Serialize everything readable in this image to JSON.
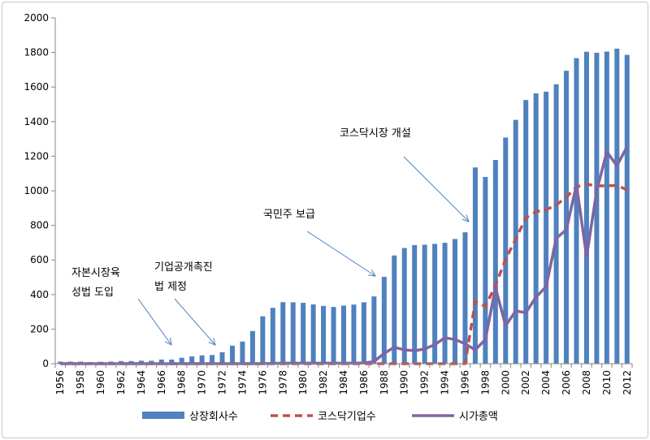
{
  "chart_data": {
    "type": "bar+line",
    "ylim": [
      0,
      2000
    ],
    "yticks": [
      0,
      200,
      400,
      600,
      800,
      1000,
      1200,
      1400,
      1600,
      1800,
      2000
    ],
    "x": [
      1956,
      1957,
      1958,
      1959,
      1960,
      1961,
      1962,
      1963,
      1964,
      1965,
      1966,
      1967,
      1968,
      1969,
      1970,
      1971,
      1972,
      1973,
      1974,
      1975,
      1976,
      1977,
      1978,
      1979,
      1980,
      1981,
      1982,
      1983,
      1984,
      1985,
      1986,
      1987,
      1988,
      1989,
      1990,
      1991,
      1992,
      1993,
      1994,
      1995,
      1996,
      1997,
      1998,
      1999,
      2000,
      2001,
      2002,
      2003,
      2004,
      2005,
      2006,
      2007,
      2008,
      2009,
      2010,
      2011,
      2012
    ],
    "xtick_labels": [
      "1956",
      "1958",
      "1960",
      "1962",
      "1964",
      "1966",
      "1968",
      "1970",
      "1972",
      "1974",
      "1976",
      "1978",
      "1980",
      "1982",
      "1984",
      "1986",
      "1988",
      "1990",
      "1992",
      "1994",
      "1996",
      "1998",
      "2000",
      "2002",
      "2004",
      "2006",
      "2008",
      "2010",
      "2012"
    ],
    "series": [
      {
        "name": "상장회사수",
        "type": "bar",
        "color": "#4f81bd",
        "values": [
          12,
          12,
          12,
          9,
          11,
          12,
          15,
          15,
          17,
          17,
          24,
          24,
          34,
          42,
          48,
          50,
          66,
          104,
          128,
          189,
          274,
          323,
          356,
          355,
          352,
          343,
          334,
          328,
          336,
          342,
          355,
          389,
          502,
          626,
          669,
          686,
          688,
          693,
          699,
          721,
          760,
          1135,
          1080,
          1178,
          1308,
          1410,
          1525,
          1563,
          1573,
          1616,
          1694,
          1767,
          1804,
          1798,
          1805,
          1822,
          1786
        ]
      },
      {
        "name": "코스닥기업수",
        "type": "line",
        "style": "dashed",
        "color": "#c0504d",
        "values": [
          0,
          0,
          0,
          0,
          0,
          0,
          0,
          0,
          0,
          0,
          0,
          0,
          0,
          0,
          0,
          0,
          0,
          0,
          0,
          0,
          0,
          0,
          0,
          0,
          0,
          0,
          0,
          0,
          0,
          0,
          0,
          0,
          0,
          0,
          0,
          0,
          0,
          0,
          0,
          0,
          0,
          359,
          331,
          453,
          604,
          721,
          843,
          879,
          890,
          918,
          963,
          1023,
          1038,
          1028,
          1029,
          1031,
          1005
        ]
      },
      {
        "name": "시가총액",
        "type": "line",
        "style": "solid",
        "color": "#8064a2",
        "values": [
          0,
          0,
          0,
          0,
          0,
          0,
          0,
          0,
          0,
          0,
          0,
          0,
          0,
          0,
          0,
          0,
          0,
          0,
          0,
          0,
          0,
          2,
          3,
          3,
          3,
          3,
          3,
          3,
          3,
          3,
          4,
          12,
          60,
          95,
          80,
          75,
          85,
          110,
          150,
          140,
          115,
          80,
          140,
          440,
          220,
          305,
          295,
          385,
          445,
          725,
          775,
          1035,
          620,
          1000,
          1225,
          1145,
          1255
        ]
      }
    ],
    "legend": "bottom",
    "annotations": [
      {
        "lines": [
          "자본시장육",
          "성법 도입"
        ],
        "year": 1967
      },
      {
        "lines": [
          "기업공개촉진",
          "법 제정"
        ],
        "year": 1972
      },
      {
        "lines": [
          "국민주 보급"
        ],
        "year": 1988
      },
      {
        "lines": [
          "코스닥시장 개설"
        ],
        "year": 1997
      }
    ]
  }
}
